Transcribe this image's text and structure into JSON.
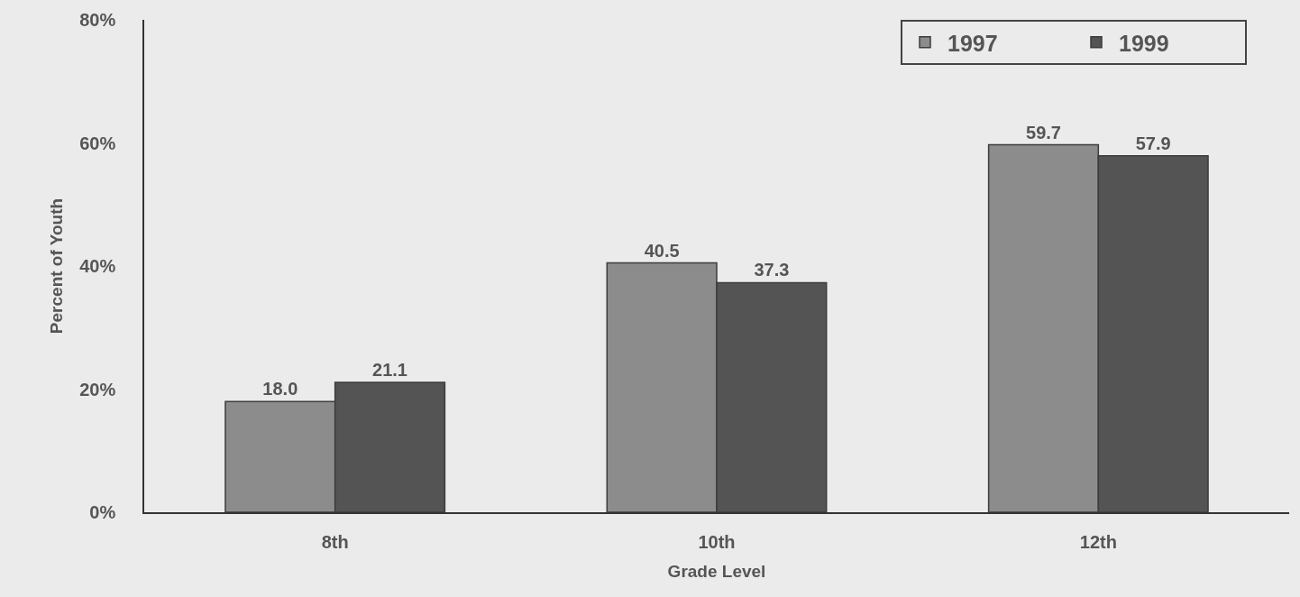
{
  "chart_data": {
    "type": "bar",
    "xlabel": "Grade Level",
    "ylabel": "Percent of Youth",
    "categories": [
      "8th",
      "10th",
      "12th"
    ],
    "series": [
      {
        "name": "1997",
        "color": "#8c8c8c",
        "values": [
          18.0,
          40.5,
          59.7
        ],
        "value_labels": [
          "18.0",
          "40.5",
          "59.7"
        ]
      },
      {
        "name": "1999",
        "color": "#545454",
        "values": [
          21.1,
          37.3,
          57.9
        ],
        "value_labels": [
          "21.1",
          "37.3",
          "57.9"
        ]
      }
    ],
    "ylim": [
      0,
      80
    ],
    "yticks": [
      {
        "value": 0,
        "label": "0%"
      },
      {
        "value": 20,
        "label": "20%"
      },
      {
        "value": 40,
        "label": "40%"
      },
      {
        "value": 60,
        "label": "60%"
      },
      {
        "value": 80,
        "label": "80%"
      }
    ],
    "legend": "top right"
  }
}
